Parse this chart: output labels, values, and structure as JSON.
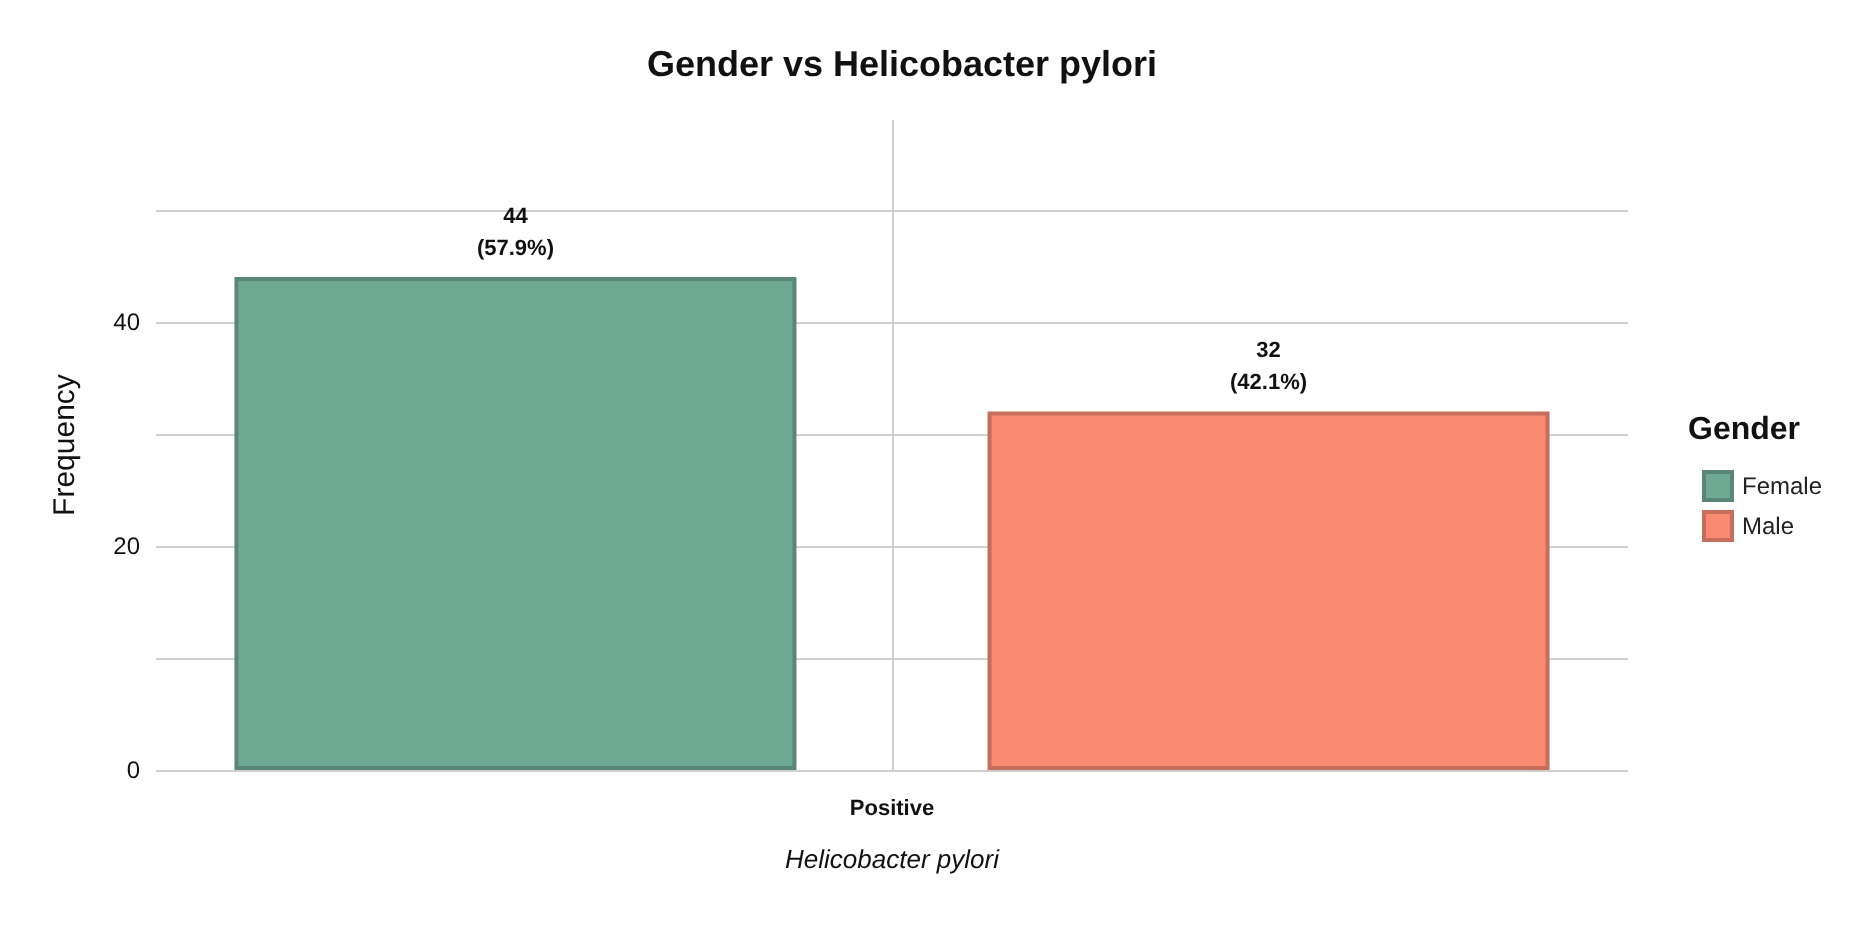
{
  "chart_data": {
    "type": "bar",
    "title": "Gender vs Helicobacter pylori",
    "xlabel": "Helicobacter pylori",
    "ylabel": "Frequency",
    "legend_title": "Gender",
    "categories": [
      "Positive"
    ],
    "series": [
      {
        "name": "Female",
        "color": "#6fa893",
        "values": [
          44
        ],
        "value_labels": [
          "44\n(57.9%)"
        ]
      },
      {
        "name": "Male",
        "color": "#f88a72",
        "values": [
          32
        ],
        "value_labels": [
          "32\n(42.1%)"
        ]
      }
    ],
    "ylim": [
      0,
      58
    ],
    "yticks": [
      0,
      {
        "value": 10,
        "label": null
      },
      20,
      {
        "value": 30,
        "label": null
      },
      40,
      {
        "value": 50,
        "label": null
      }
    ],
    "grid": true,
    "legend": "right"
  }
}
